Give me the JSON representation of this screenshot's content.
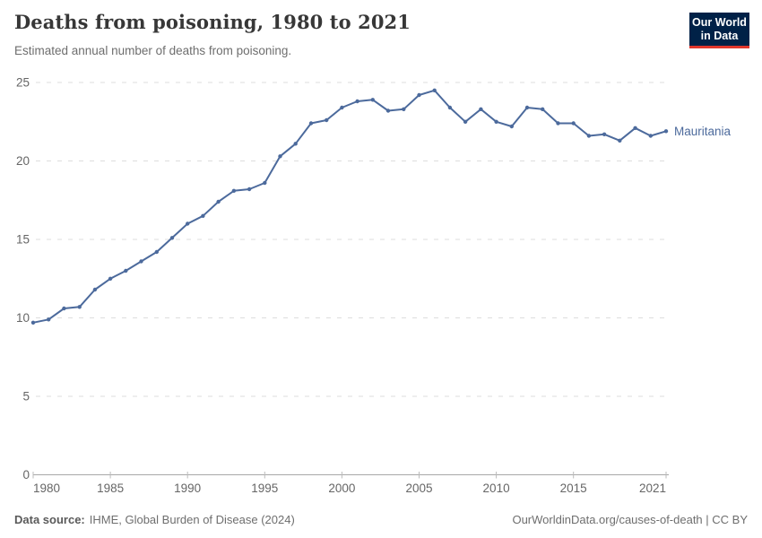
{
  "header": {
    "title": "Deaths from poisoning, 1980 to 2021",
    "subtitle": "Estimated annual number of deaths from poisoning."
  },
  "logo": {
    "line1": "Our World",
    "line2": "in Data",
    "bg_color": "#002147",
    "accent_color": "#e0362c"
  },
  "chart_data": {
    "type": "line",
    "title": "Deaths from poisoning, 1980 to 2021",
    "xlabel": "",
    "ylabel": "",
    "ylim": [
      0,
      25
    ],
    "yticks": [
      0,
      5,
      10,
      15,
      20,
      25
    ],
    "xticks": [
      1980,
      1985,
      1990,
      1995,
      2000,
      2005,
      2010,
      2015,
      2021
    ],
    "grid": "horizontal-dashed",
    "legend_position": "right-of-line-end",
    "x": [
      1980,
      1981,
      1982,
      1983,
      1984,
      1985,
      1986,
      1987,
      1988,
      1989,
      1990,
      1991,
      1992,
      1993,
      1994,
      1995,
      1996,
      1997,
      1998,
      1999,
      2000,
      2001,
      2002,
      2003,
      2004,
      2005,
      2006,
      2007,
      2008,
      2009,
      2010,
      2011,
      2012,
      2013,
      2014,
      2015,
      2016,
      2017,
      2018,
      2019,
      2020,
      2021
    ],
    "series": [
      {
        "name": "Mauritania",
        "color": "#4C6A9C",
        "values": [
          9.7,
          9.9,
          10.6,
          10.7,
          11.8,
          12.5,
          13.0,
          13.6,
          14.2,
          15.1,
          16.0,
          16.5,
          17.4,
          18.1,
          18.2,
          18.6,
          20.3,
          21.1,
          22.4,
          22.6,
          23.4,
          23.8,
          23.9,
          23.2,
          23.3,
          24.2,
          24.5,
          23.4,
          22.5,
          23.3,
          22.5,
          22.2,
          23.4,
          23.3,
          22.4,
          22.4,
          21.6,
          21.7,
          21.3,
          22.1,
          21.6,
          21.9
        ]
      }
    ]
  },
  "footer": {
    "data_source_label": "Data source:",
    "data_source_value": "IHME, Global Burden of Disease (2024)",
    "credit": "OurWorldinData.org/causes-of-death | CC BY"
  },
  "colors": {
    "line": "#4C6A9C",
    "grid": "#dddddd",
    "axis": "#a8a8a8",
    "axis_tick": "#bbbbbb",
    "tick_text": "#666666",
    "title_text": "#373737",
    "subtitle_text": "#6e6e6e"
  }
}
